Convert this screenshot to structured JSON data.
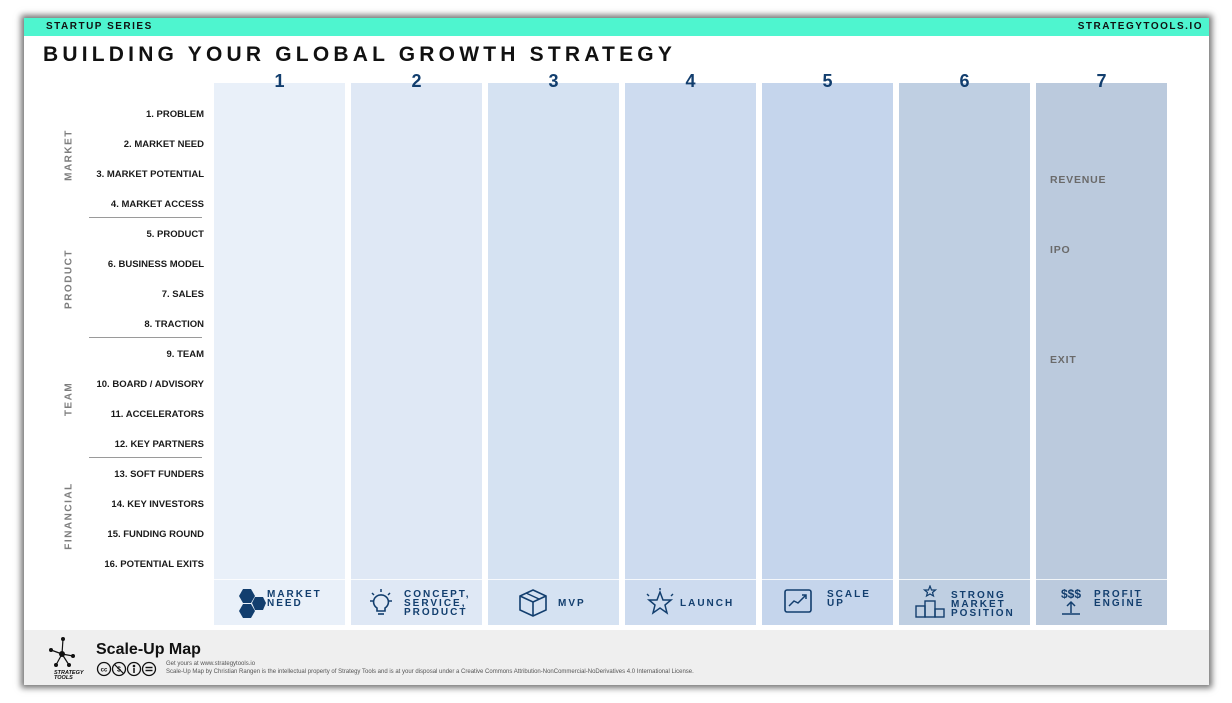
{
  "header": {
    "series": "STARTUP SERIES",
    "site": "STRATEGYTOOLS.IO",
    "title": "BUILDING YOUR GLOBAL GROWTH STRATEGY",
    "accent_color": "#4ef5cf"
  },
  "groups": [
    "MARKET",
    "PRODUCT",
    "TEAM",
    "FINANCIAL"
  ],
  "rows": [
    "1. PROBLEM",
    "2. MARKET NEED",
    "3. MARKET POTENTIAL",
    "4. MARKET ACCESS",
    "5. PRODUCT",
    "6. BUSINESS MODEL",
    "7. SALES",
    "8. TRACTION",
    "9. TEAM",
    "10. BOARD / ADVISORY",
    "11. ACCELERATORS",
    "12. KEY PARTNERS",
    "13. SOFT FUNDERS",
    "14. KEY INVESTORS",
    "15. FUNDING ROUND",
    "16. POTENTIAL EXITS"
  ],
  "columns": [
    {
      "number": "1",
      "label": [
        "MARKET",
        "NEED"
      ],
      "icon": "hexagons-icon",
      "color": "#e9f0f9"
    },
    {
      "number": "2",
      "label": [
        "CONCEPT,",
        "SERVICE,",
        "PRODUCT"
      ],
      "icon": "lightbulb-icon",
      "color": "#dfe8f5"
    },
    {
      "number": "3",
      "label": [
        "MVP"
      ],
      "icon": "box-icon",
      "color": "#d5e2f2"
    },
    {
      "number": "4",
      "label": [
        "LAUNCH"
      ],
      "icon": "star-icon",
      "color": "#cddbef"
    },
    {
      "number": "5",
      "label": [
        "SCALE",
        "UP"
      ],
      "icon": "trend-chart-icon",
      "color": "#c5d5ec"
    },
    {
      "number": "6",
      "label": [
        "STRONG",
        "MARKET",
        "POSITION"
      ],
      "icon": "podium-icon",
      "color": "#bfcfe2"
    },
    {
      "number": "7",
      "label": [
        "PROFIT",
        "ENGINE"
      ],
      "icon": "money-up-icon",
      "color": "#bbcadd"
    }
  ],
  "column7_notes": [
    "REVENUE",
    "IPO",
    "EXIT"
  ],
  "footer": {
    "brand": "Scale-Up Map",
    "logo_text": [
      "STRATEGY",
      "TOOLS"
    ],
    "get_text": "Get yours at www.strategytools.io",
    "license_text": "Scale-Up Map by Christian Rangen is the intellectual property of Strategy Tools and is at your disposal under a Creative Commons Attribution-NonCommercial-NoDerivatives 4.0 International License."
  }
}
